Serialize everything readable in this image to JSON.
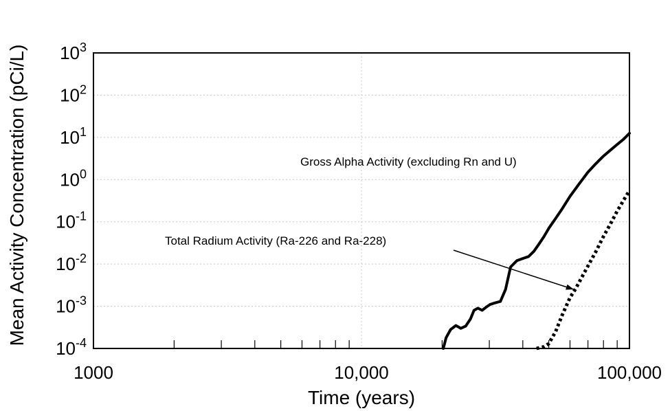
{
  "chart_data": {
    "type": "line",
    "xlabel": "Time (years)",
    "ylabel": "Mean Activity Concentration (pCi/L)",
    "x_scale": "log",
    "y_scale": "log",
    "xlim": [
      1000,
      100000
    ],
    "ylim": [
      0.0001,
      1000
    ],
    "x_ticks": [
      {
        "value": 1000,
        "label": "1000"
      },
      {
        "value": 10000,
        "label": "10,000"
      },
      {
        "value": 100000,
        "label": "100,000"
      }
    ],
    "y_ticks": [
      {
        "value": 1000,
        "base": "10",
        "exp": "3"
      },
      {
        "value": 100,
        "base": "10",
        "exp": "2"
      },
      {
        "value": 10,
        "base": "10",
        "exp": "1"
      },
      {
        "value": 1,
        "base": "10",
        "exp": "0"
      },
      {
        "value": 0.1,
        "base": "10",
        "exp": "-1"
      },
      {
        "value": 0.01,
        "base": "10",
        "exp": "-2"
      },
      {
        "value": 0.001,
        "base": "10",
        "exp": "-3"
      },
      {
        "value": 0.0001,
        "base": "10",
        "exp": "-4"
      }
    ],
    "grid": true,
    "series": [
      {
        "name": "Gross Alpha Activity (excluding Rn and U)",
        "style": "solid",
        "color": "#000000",
        "points": [
          [
            20200,
            0.0001
          ],
          [
            20700,
            0.00018
          ],
          [
            21500,
            0.00028
          ],
          [
            22500,
            0.00035
          ],
          [
            23500,
            0.0003
          ],
          [
            24500,
            0.00034
          ],
          [
            25500,
            0.0005
          ],
          [
            26300,
            0.0008
          ],
          [
            27200,
            0.0009
          ],
          [
            28200,
            0.0008
          ],
          [
            29200,
            0.00095
          ],
          [
            30200,
            0.0011
          ],
          [
            31500,
            0.0012
          ],
          [
            33000,
            0.0013
          ],
          [
            34500,
            0.0025
          ],
          [
            36000,
            0.0085
          ],
          [
            38000,
            0.012
          ],
          [
            40000,
            0.0135
          ],
          [
            42000,
            0.015
          ],
          [
            44000,
            0.02
          ],
          [
            46000,
            0.03
          ],
          [
            48000,
            0.045
          ],
          [
            50000,
            0.07
          ],
          [
            53000,
            0.12
          ],
          [
            56000,
            0.2
          ],
          [
            60000,
            0.4
          ],
          [
            65000,
            0.8
          ],
          [
            70000,
            1.5
          ],
          [
            75000,
            2.4
          ],
          [
            80000,
            3.6
          ],
          [
            85000,
            5.0
          ],
          [
            90000,
            6.8
          ],
          [
            95000,
            9.0
          ],
          [
            100000,
            12.5
          ]
        ]
      },
      {
        "name": "Total Radium Activity (Ra-226 and Ra-228)",
        "style": "dotted",
        "color": "#000000",
        "points": [
          [
            45000,
            0.0001
          ],
          [
            48000,
            0.00011
          ],
          [
            50000,
            0.00013
          ],
          [
            53000,
            0.00025
          ],
          [
            56000,
            0.0006
          ],
          [
            60000,
            0.0016
          ],
          [
            63000,
            0.0026
          ],
          [
            66000,
            0.0045
          ],
          [
            70000,
            0.009
          ],
          [
            75000,
            0.02
          ],
          [
            80000,
            0.045
          ],
          [
            85000,
            0.09
          ],
          [
            90000,
            0.18
          ],
          [
            95000,
            0.32
          ],
          [
            100000,
            0.55
          ]
        ]
      }
    ],
    "annotations": [
      {
        "text": "Gross Alpha Activity (excluding Rn and U)",
        "series": 0
      },
      {
        "text": "Total Radium Activity (Ra-226 and Ra-228)",
        "series": 1,
        "arrow_to": [
          62000,
          0.0025
        ]
      }
    ]
  }
}
